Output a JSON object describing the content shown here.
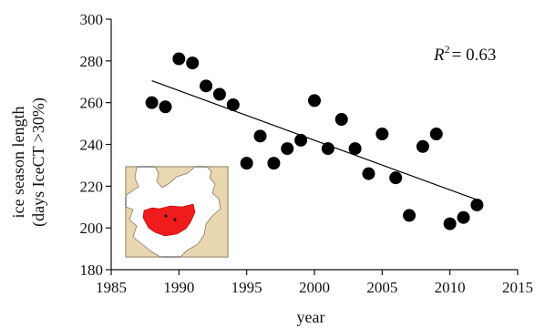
{
  "chart_data": {
    "type": "scatter",
    "x_axis": {
      "label": "year",
      "range": [
        1985,
        2015
      ],
      "ticks": [
        1985,
        1990,
        1995,
        2000,
        2005,
        2010,
        2015
      ]
    },
    "y_axis": {
      "label_line1": "ice season length",
      "label_line2": "(days IceCT >30%)",
      "range": [
        180,
        300
      ],
      "ticks": [
        180,
        200,
        220,
        240,
        260,
        280,
        300
      ]
    },
    "annotation": {
      "prefix": "R",
      "sup": "2",
      "suffix": "= 0.63"
    },
    "grid": false,
    "legend": "none",
    "series": [
      {
        "points": [
          [
            1988,
            260
          ],
          [
            1989,
            258
          ],
          [
            1990,
            281
          ],
          [
            1991,
            279
          ],
          [
            1992,
            268
          ],
          [
            1993,
            264
          ],
          [
            1994,
            259
          ],
          [
            1995,
            231
          ],
          [
            1996,
            244
          ],
          [
            1997,
            231
          ],
          [
            1998,
            238
          ],
          [
            1999,
            242
          ],
          [
            2000,
            261
          ],
          [
            2001,
            238
          ],
          [
            2002,
            252
          ],
          [
            2003,
            238
          ],
          [
            2004,
            226
          ],
          [
            2005,
            245
          ],
          [
            2006,
            224
          ],
          [
            2007,
            206
          ],
          [
            2008,
            239
          ],
          [
            2009,
            245
          ],
          [
            2010,
            202
          ],
          [
            2011,
            205
          ],
          [
            2012,
            211
          ]
        ],
        "color": "#000000"
      }
    ],
    "trendline": {
      "x": [
        1988,
        2012
      ],
      "y": [
        270.5,
        213.5
      ],
      "color": "#000000"
    },
    "inset_map": {
      "land_color": "#e8d7b0",
      "water_color": "#ffffff",
      "highlight_color": "#ee1c1c"
    }
  }
}
